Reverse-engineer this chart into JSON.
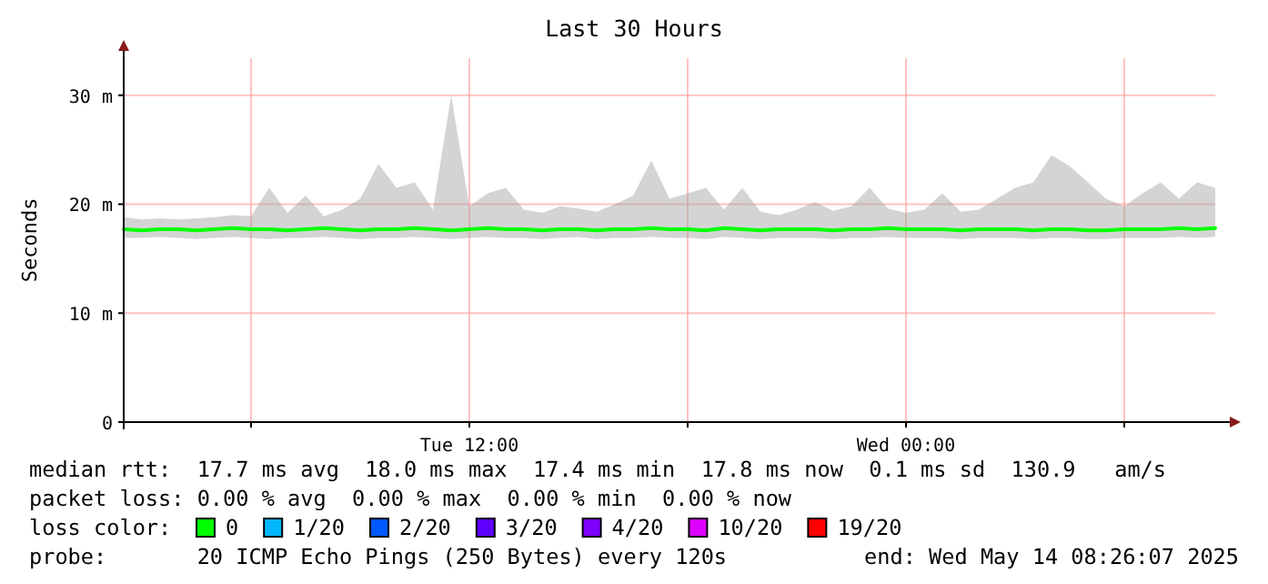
{
  "chart_data": {
    "type": "line",
    "title": "Last 30 Hours",
    "ylabel": "Seconds",
    "legend_title": "loss color:",
    "legend": "bottom",
    "grid": true,
    "xlim": [
      "2025-05-13T02:30",
      "2025-05-14T08:30"
    ],
    "xticks": [
      {
        "value": "2025-05-13T06:00",
        "label": null
      },
      {
        "value": "2025-05-13T12:00",
        "label": "Tue 12:00"
      },
      {
        "value": "2025-05-13T18:00",
        "label": null
      },
      {
        "value": "2025-05-14T00:00",
        "label": "Wed 00:00"
      },
      {
        "value": "2025-05-14T06:00",
        "label": null
      }
    ],
    "ylim": [
      0,
      33.4
    ],
    "yticks": [
      {
        "value": 0,
        "label": "0"
      },
      {
        "value": 10,
        "label": "10 m"
      },
      {
        "value": 20,
        "label": "20 m"
      },
      {
        "value": 30,
        "label": "30 m"
      }
    ],
    "x": [
      "2025-05-13T02:30",
      "2025-05-13T03:00",
      "2025-05-13T03:30",
      "2025-05-13T04:00",
      "2025-05-13T04:30",
      "2025-05-13T05:00",
      "2025-05-13T05:30",
      "2025-05-13T06:00",
      "2025-05-13T06:30",
      "2025-05-13T07:00",
      "2025-05-13T07:30",
      "2025-05-13T08:00",
      "2025-05-13T08:30",
      "2025-05-13T09:00",
      "2025-05-13T09:30",
      "2025-05-13T10:00",
      "2025-05-13T10:30",
      "2025-05-13T11:00",
      "2025-05-13T11:30",
      "2025-05-13T12:00",
      "2025-05-13T12:30",
      "2025-05-13T13:00",
      "2025-05-13T13:30",
      "2025-05-13T14:00",
      "2025-05-13T14:30",
      "2025-05-13T15:00",
      "2025-05-13T15:30",
      "2025-05-13T16:00",
      "2025-05-13T16:30",
      "2025-05-13T17:00",
      "2025-05-13T17:30",
      "2025-05-13T18:00",
      "2025-05-13T18:30",
      "2025-05-13T19:00",
      "2025-05-13T19:30",
      "2025-05-13T20:00",
      "2025-05-13T20:30",
      "2025-05-13T21:00",
      "2025-05-13T21:30",
      "2025-05-13T22:00",
      "2025-05-13T22:30",
      "2025-05-13T23:00",
      "2025-05-13T23:30",
      "2025-05-14T00:00",
      "2025-05-14T00:30",
      "2025-05-14T01:00",
      "2025-05-14T01:30",
      "2025-05-14T02:00",
      "2025-05-14T02:30",
      "2025-05-14T03:00",
      "2025-05-14T03:30",
      "2025-05-14T04:00",
      "2025-05-14T04:30",
      "2025-05-14T05:00",
      "2025-05-14T05:30",
      "2025-05-14T06:00",
      "2025-05-14T06:30",
      "2025-05-14T07:00",
      "2025-05-14T07:30",
      "2025-05-14T08:00",
      "2025-05-14T08:30"
    ],
    "series": [
      {
        "name": "0",
        "color": "#00ff00",
        "values": [
          17.7,
          17.6,
          17.7,
          17.7,
          17.6,
          17.7,
          17.8,
          17.7,
          17.7,
          17.6,
          17.7,
          17.8,
          17.7,
          17.6,
          17.7,
          17.7,
          17.8,
          17.7,
          17.6,
          17.7,
          17.8,
          17.7,
          17.7,
          17.6,
          17.7,
          17.7,
          17.6,
          17.7,
          17.7,
          17.8,
          17.7,
          17.7,
          17.6,
          17.8,
          17.7,
          17.6,
          17.7,
          17.7,
          17.7,
          17.6,
          17.7,
          17.7,
          17.8,
          17.7,
          17.7,
          17.7,
          17.6,
          17.7,
          17.7,
          17.7,
          17.6,
          17.7,
          17.7,
          17.6,
          17.6,
          17.7,
          17.7,
          17.7,
          17.8,
          17.7,
          17.8
        ],
        "lower": [
          16.9,
          16.9,
          17.0,
          16.9,
          16.8,
          16.9,
          17.0,
          16.9,
          16.8,
          16.9,
          16.9,
          17.0,
          16.9,
          16.8,
          16.9,
          16.9,
          17.0,
          16.9,
          16.8,
          16.9,
          17.0,
          16.9,
          16.9,
          16.8,
          16.9,
          17.0,
          16.8,
          16.9,
          16.9,
          17.0,
          16.9,
          16.9,
          16.8,
          17.0,
          16.9,
          16.8,
          16.9,
          16.9,
          16.9,
          16.8,
          16.9,
          16.9,
          17.0,
          16.9,
          16.9,
          16.9,
          16.8,
          16.9,
          16.9,
          16.9,
          16.8,
          16.9,
          16.9,
          16.8,
          16.8,
          16.9,
          16.9,
          16.9,
          17.0,
          16.9,
          17.0
        ],
        "upper": [
          18.8,
          18.6,
          18.7,
          18.6,
          18.7,
          18.8,
          19.0,
          18.9,
          21.5,
          19.2,
          20.8,
          18.9,
          19.5,
          20.5,
          23.7,
          21.5,
          22.0,
          19.5,
          30.0,
          19.8,
          21.0,
          21.5,
          19.5,
          19.2,
          19.8,
          19.6,
          19.3,
          20.0,
          20.8,
          24.0,
          20.5,
          21.0,
          21.5,
          19.5,
          21.5,
          19.3,
          19.0,
          19.5,
          20.2,
          19.4,
          19.8,
          21.5,
          19.6,
          19.2,
          19.5,
          21.0,
          19.3,
          19.5,
          20.5,
          21.5,
          22.0,
          24.5,
          23.5,
          22.0,
          20.5,
          19.8,
          21.0,
          22.0,
          20.5,
          22.0,
          21.5
        ]
      },
      {
        "name": "1/20",
        "color": "#00b8ff",
        "values": [
          null,
          null,
          null,
          null,
          null,
          null,
          null,
          null,
          null,
          null,
          null,
          null,
          null,
          null,
          null,
          null,
          null,
          null,
          null,
          null,
          null,
          null,
          null,
          null,
          null,
          null,
          null,
          null,
          null,
          null,
          null,
          null,
          null,
          null,
          null,
          null,
          null,
          null,
          null,
          null,
          null,
          null,
          null,
          null,
          null,
          null,
          null,
          null,
          null,
          null,
          null,
          null,
          null,
          null,
          null,
          null,
          null,
          null,
          null,
          null,
          null
        ]
      },
      {
        "name": "2/20",
        "color": "#0059ff",
        "values": [
          null,
          null,
          null,
          null,
          null,
          null,
          null,
          null,
          null,
          null,
          null,
          null,
          null,
          null,
          null,
          null,
          null,
          null,
          null,
          null,
          null,
          null,
          null,
          null,
          null,
          null,
          null,
          null,
          null,
          null,
          null,
          null,
          null,
          null,
          null,
          null,
          null,
          null,
          null,
          null,
          null,
          null,
          null,
          null,
          null,
          null,
          null,
          null,
          null,
          null,
          null,
          null,
          null,
          null,
          null,
          null,
          null,
          null,
          null,
          null,
          null
        ]
      },
      {
        "name": "3/20",
        "color": "#5e00ff",
        "values": [
          null,
          null,
          null,
          null,
          null,
          null,
          null,
          null,
          null,
          null,
          null,
          null,
          null,
          null,
          null,
          null,
          null,
          null,
          null,
          null,
          null,
          null,
          null,
          null,
          null,
          null,
          null,
          null,
          null,
          null,
          null,
          null,
          null,
          null,
          null,
          null,
          null,
          null,
          null,
          null,
          null,
          null,
          null,
          null,
          null,
          null,
          null,
          null,
          null,
          null,
          null,
          null,
          null,
          null,
          null,
          null,
          null,
          null,
          null,
          null,
          null
        ]
      },
      {
        "name": "4/20",
        "color": "#7e00ff",
        "values": [
          null,
          null,
          null,
          null,
          null,
          null,
          null,
          null,
          null,
          null,
          null,
          null,
          null,
          null,
          null,
          null,
          null,
          null,
          null,
          null,
          null,
          null,
          null,
          null,
          null,
          null,
          null,
          null,
          null,
          null,
          null,
          null,
          null,
          null,
          null,
          null,
          null,
          null,
          null,
          null,
          null,
          null,
          null,
          null,
          null,
          null,
          null,
          null,
          null,
          null,
          null,
          null,
          null,
          null,
          null,
          null,
          null,
          null,
          null,
          null,
          null
        ]
      },
      {
        "name": "10/20",
        "color": "#dd00ff",
        "values": [
          null,
          null,
          null,
          null,
          null,
          null,
          null,
          null,
          null,
          null,
          null,
          null,
          null,
          null,
          null,
          null,
          null,
          null,
          null,
          null,
          null,
          null,
          null,
          null,
          null,
          null,
          null,
          null,
          null,
          null,
          null,
          null,
          null,
          null,
          null,
          null,
          null,
          null,
          null,
          null,
          null,
          null,
          null,
          null,
          null,
          null,
          null,
          null,
          null,
          null,
          null,
          null,
          null,
          null,
          null,
          null,
          null,
          null,
          null,
          null,
          null
        ]
      },
      {
        "name": "19/20",
        "color": "#ff0000",
        "values": [
          null,
          null,
          null,
          null,
          null,
          null,
          null,
          null,
          null,
          null,
          null,
          null,
          null,
          null,
          null,
          null,
          null,
          null,
          null,
          null,
          null,
          null,
          null,
          null,
          null,
          null,
          null,
          null,
          null,
          null,
          null,
          null,
          null,
          null,
          null,
          null,
          null,
          null,
          null,
          null,
          null,
          null,
          null,
          null,
          null,
          null,
          null,
          null,
          null,
          null,
          null,
          null,
          null,
          null,
          null,
          null,
          null,
          null,
          null,
          null,
          null
        ]
      }
    ],
    "annotations": [
      "median rtt:  17.7 ms avg  18.0 ms max  17.4 ms min  17.8 ms now  0.1 ms sd  130.9   am/s",
      "packet loss: 0.00 % avg  0.00 % max  0.00 % min  0.00 % now",
      "probe:       20 ICMP Echo Pings (250 Bytes) every 120s",
      "end: Wed May 14 08:26:07 2025"
    ]
  }
}
